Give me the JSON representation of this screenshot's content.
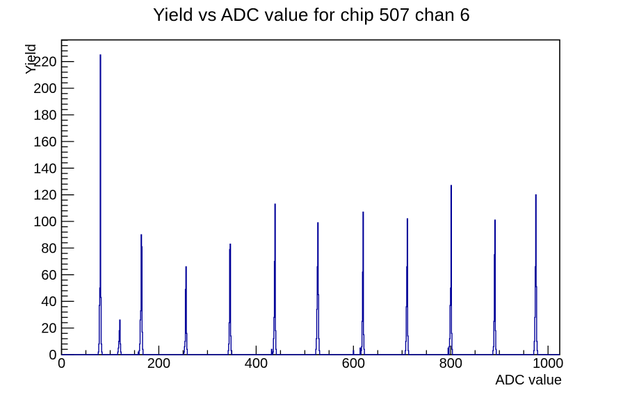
{
  "chart_data": {
    "type": "bar",
    "title": "Yield vs ADC value for chip 507 chan 6",
    "xlabel": "ADC value",
    "ylabel": "Yield",
    "xlim": [
      0,
      1024
    ],
    "ylim": [
      0,
      236.25
    ],
    "x_major_ticks": [
      0,
      200,
      400,
      600,
      800,
      1000
    ],
    "x_minor_step": 50,
    "y_major_ticks": [
      0,
      20,
      40,
      60,
      80,
      100,
      120,
      140,
      160,
      180,
      200,
      220
    ],
    "y_minor_step": 4,
    "grid": false,
    "legend": "none",
    "line_color": "#000099",
    "axis_color": "#000000",
    "bin_width": 1,
    "peaks": [
      {
        "adc": 80,
        "yield": 225
      },
      {
        "adc": 120,
        "yield": 26
      },
      {
        "adc": 164,
        "yield": 90
      },
      {
        "adc": 256,
        "yield": 66
      },
      {
        "adc": 347,
        "yield": 83
      },
      {
        "adc": 439,
        "yield": 113
      },
      {
        "adc": 527,
        "yield": 99
      },
      {
        "adc": 620,
        "yield": 107
      },
      {
        "adc": 711,
        "yield": 102
      },
      {
        "adc": 801,
        "yield": 127
      },
      {
        "adc": 891,
        "yield": 101
      },
      {
        "adc": 975,
        "yield": 120
      }
    ],
    "bins": [
      [
        76,
        2
      ],
      [
        77,
        8
      ],
      [
        78,
        37
      ],
      [
        79,
        50
      ],
      [
        80,
        225
      ],
      [
        81,
        43
      ],
      [
        82,
        8
      ],
      [
        83,
        2
      ],
      [
        116,
        2
      ],
      [
        117,
        5
      ],
      [
        118,
        10
      ],
      [
        119,
        18
      ],
      [
        120,
        26
      ],
      [
        121,
        8
      ],
      [
        122,
        2
      ],
      [
        158,
        2
      ],
      [
        160,
        3
      ],
      [
        161,
        8
      ],
      [
        162,
        26
      ],
      [
        163,
        33
      ],
      [
        164,
        90
      ],
      [
        165,
        81
      ],
      [
        166,
        17
      ],
      [
        167,
        4
      ],
      [
        252,
        2
      ],
      [
        253,
        6
      ],
      [
        254,
        10
      ],
      [
        255,
        49
      ],
      [
        256,
        66
      ],
      [
        257,
        16
      ],
      [
        258,
        4
      ],
      [
        343,
        3
      ],
      [
        344,
        8
      ],
      [
        345,
        24
      ],
      [
        346,
        79
      ],
      [
        347,
        83
      ],
      [
        348,
        14
      ],
      [
        349,
        3
      ],
      [
        432,
        4
      ],
      [
        435,
        2
      ],
      [
        436,
        12
      ],
      [
        437,
        28
      ],
      [
        438,
        70
      ],
      [
        439,
        113
      ],
      [
        440,
        18
      ],
      [
        441,
        4
      ],
      [
        523,
        4
      ],
      [
        524,
        12
      ],
      [
        525,
        34
      ],
      [
        526,
        66
      ],
      [
        527,
        99
      ],
      [
        528,
        45
      ],
      [
        529,
        12
      ],
      [
        530,
        3
      ],
      [
        600,
        3
      ],
      [
        614,
        5
      ],
      [
        616,
        3
      ],
      [
        617,
        6
      ],
      [
        618,
        25
      ],
      [
        619,
        62
      ],
      [
        620,
        107
      ],
      [
        621,
        15
      ],
      [
        622,
        4
      ],
      [
        707,
        3
      ],
      [
        708,
        10
      ],
      [
        709,
        36
      ],
      [
        710,
        66
      ],
      [
        711,
        102
      ],
      [
        712,
        14
      ],
      [
        713,
        3
      ],
      [
        795,
        5
      ],
      [
        797,
        6
      ],
      [
        798,
        12
      ],
      [
        799,
        37
      ],
      [
        800,
        50
      ],
      [
        801,
        127
      ],
      [
        802,
        16
      ],
      [
        803,
        4
      ],
      [
        887,
        3
      ],
      [
        888,
        6
      ],
      [
        889,
        25
      ],
      [
        890,
        75
      ],
      [
        891,
        101
      ],
      [
        892,
        18
      ],
      [
        893,
        4
      ],
      [
        971,
        3
      ],
      [
        972,
        10
      ],
      [
        973,
        28
      ],
      [
        974,
        66
      ],
      [
        975,
        120
      ],
      [
        976,
        51
      ],
      [
        977,
        10
      ],
      [
        978,
        3
      ]
    ]
  }
}
